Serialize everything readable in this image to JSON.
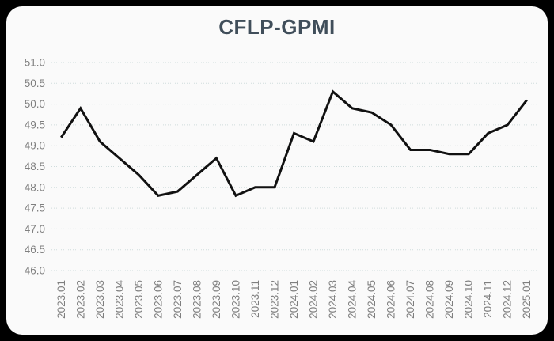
{
  "page": {
    "background_color": "#000000",
    "card_background_color": "#fafafa"
  },
  "chart_data": {
    "type": "line",
    "title": "CFLP-GPMI",
    "series_name": "CFLP-GPMI",
    "categories": [
      "2023.01",
      "2023.02",
      "2023.03",
      "2023.04",
      "2023.05",
      "2023.06",
      "2023.07",
      "2023.08",
      "2023.09",
      "2023.10",
      "2023.11",
      "2023.12",
      "2024.01",
      "2024.02",
      "2024.03",
      "2024.04",
      "2024.05",
      "2024.06",
      "2024.07",
      "2024.08",
      "2024.09",
      "2024.10",
      "2024.11",
      "2024.12",
      "2025.01"
    ],
    "values": [
      49.2,
      49.9,
      49.1,
      48.7,
      48.3,
      47.8,
      47.9,
      48.3,
      48.7,
      47.8,
      48.0,
      48.0,
      49.3,
      49.1,
      50.3,
      49.9,
      49.8,
      49.5,
      48.9,
      48.9,
      48.8,
      48.8,
      49.3,
      49.5,
      50.1
    ],
    "ylim": [
      46.0,
      51.0
    ],
    "ytick_step": 0.5,
    "ytick_labels": [
      "51.0",
      "50.5",
      "50.0",
      "49.5",
      "49.0",
      "48.5",
      "48.0",
      "47.5",
      "47.0",
      "46.5",
      "46.0"
    ],
    "xlabel": "",
    "ylabel": "",
    "legend": "none",
    "grid": "horizontal-dotted",
    "line_color": "#111111",
    "line_width": 3,
    "grid_color": "#cfdcdc",
    "tick_label_color": "#7f7f7f",
    "title_color": "#404e5a"
  }
}
